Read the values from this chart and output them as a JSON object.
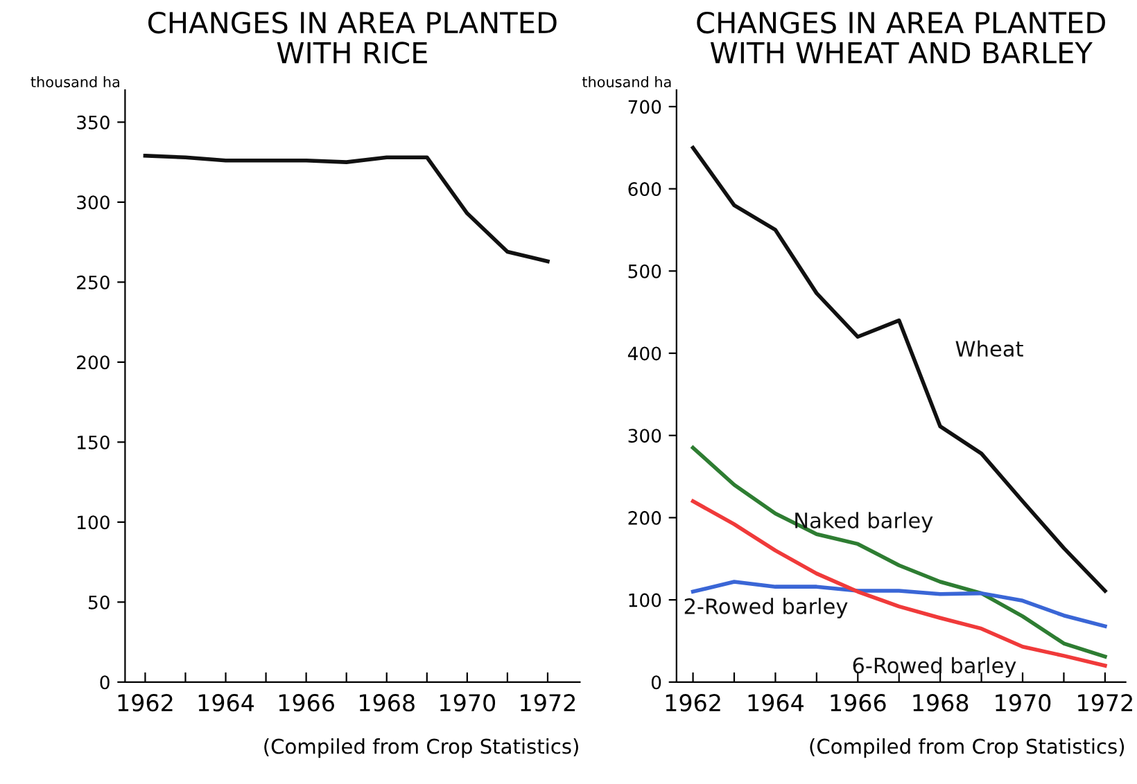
{
  "chart_data": [
    {
      "type": "line",
      "title": "CHANGES IN AREA PLANTED\nWITH RICE",
      "ylabel": "thousand ha",
      "x": [
        1962,
        1963,
        1964,
        1965,
        1966,
        1967,
        1968,
        1969,
        1970,
        1971,
        1972
      ],
      "series": [
        {
          "color": "#111111",
          "values": [
            329,
            328,
            326,
            326,
            326,
            325,
            328,
            328,
            293,
            269,
            263
          ]
        }
      ],
      "xlim": [
        1961.5,
        1972.8
      ],
      "ylim": [
        0,
        370
      ],
      "xticks": [
        1962,
        {
          "value": 1963,
          "label": null
        },
        1964,
        {
          "value": 1965,
          "label": null
        },
        1966,
        {
          "value": 1967,
          "label": null
        },
        1968,
        {
          "value": 1969,
          "label": null
        },
        1970,
        {
          "value": 1971,
          "label": null
        },
        1972
      ],
      "yticks": [
        0,
        50,
        100,
        150,
        200,
        250,
        300,
        350
      ],
      "grid": false,
      "legend": false,
      "marker": "none",
      "line_style": "solid",
      "annotations": [
        "(Compiled from Crop Statistics)"
      ]
    },
    {
      "type": "line",
      "title": "CHANGES IN AREA PLANTED\nWITH WHEAT AND BARLEY",
      "ylabel": "thousand ha",
      "x": [
        1962,
        1963,
        1964,
        1965,
        1966,
        1967,
        1968,
        1969,
        1970,
        1971,
        1972
      ],
      "series": [
        {
          "name": "Wheat",
          "color": "#111111",
          "values": [
            650,
            580,
            550,
            473,
            420,
            440,
            311,
            278,
            220,
            163,
            111
          ]
        },
        {
          "name": "Naked barley",
          "color": "#2e7d32",
          "values": [
            285,
            240,
            205,
            180,
            168,
            142,
            122,
            108,
            80,
            47,
            31
          ]
        },
        {
          "name": "2-Rowed barley",
          "color": "#3a66d6",
          "values": [
            110,
            122,
            116,
            116,
            111,
            111,
            107,
            108,
            99,
            81,
            68
          ]
        },
        {
          "name": "6-Rowed barley",
          "color": "#f03a3a",
          "values": [
            220,
            192,
            160,
            132,
            110,
            92,
            78,
            65,
            43,
            32,
            20
          ]
        }
      ],
      "xlim": [
        1961.6,
        1972.5
      ],
      "ylim": [
        0,
        720
      ],
      "xticks": [
        1962,
        {
          "value": 1963,
          "label": null
        },
        1964,
        {
          "value": 1965,
          "label": null
        },
        1966,
        {
          "value": 1967,
          "label": null
        },
        1968,
        {
          "value": 1969,
          "label": null
        },
        1970,
        {
          "value": 1971,
          "label": null
        },
        1972
      ],
      "yticks": [
        0,
        100,
        200,
        300,
        400,
        500,
        600,
        700
      ],
      "grid": false,
      "legend": false,
      "marker": "none",
      "line_style": "solid",
      "annotations": [
        "(Compiled from Crop Statistics)"
      ]
    }
  ]
}
